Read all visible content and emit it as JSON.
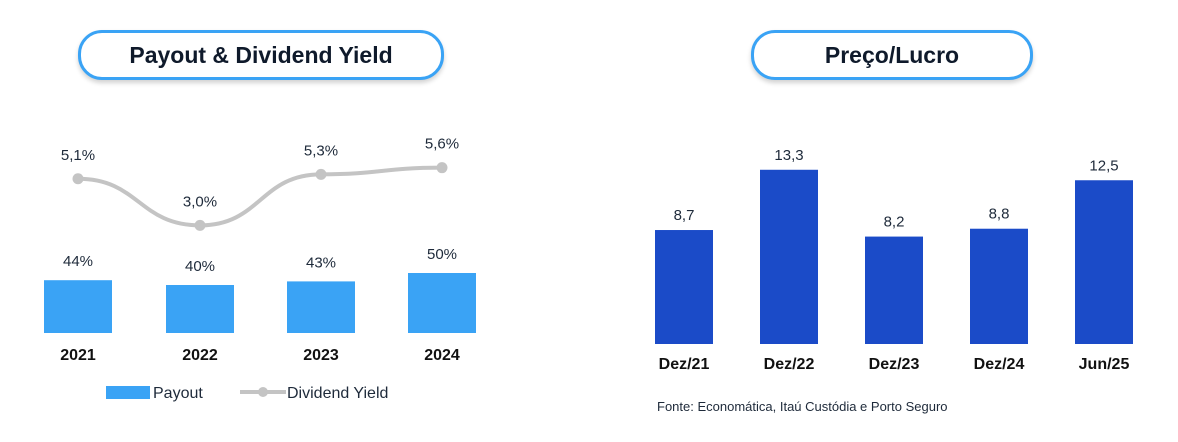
{
  "left_panel": {
    "title": "Payout & Dividend Yield"
  },
  "right_panel": {
    "title": "Preço/Lucro"
  },
  "source": "Fonte: Economática, Itaú Custódia e Porto Seguro",
  "colors": {
    "payout_bar": "#3aa3f5",
    "yield_line": "#c4c4c4",
    "pe_bar": "#1b4bc8",
    "pill_border": "#3aa3f5"
  },
  "chart_data": [
    {
      "type": "bar",
      "title": "Payout & Dividend Yield",
      "categories": [
        "2021",
        "2022",
        "2023",
        "2024"
      ],
      "series": [
        {
          "name": "Payout",
          "type": "bar",
          "values": [
            44,
            40,
            43,
            50
          ],
          "labels": [
            "44%",
            "40%",
            "43%",
            "50%"
          ]
        },
        {
          "name": "Dividend Yield",
          "type": "line",
          "values": [
            5.1,
            3.0,
            5.3,
            5.6
          ],
          "labels": [
            "5,1%",
            "3,0%",
            "5,3%",
            "5,6%"
          ]
        }
      ],
      "legend": {
        "placement": "bottom",
        "entries": [
          "Payout",
          "Dividend Yield"
        ]
      },
      "grid": false
    },
    {
      "type": "bar",
      "title": "Preço/Lucro",
      "categories": [
        "Dez/21",
        "Dez/22",
        "Dez/23",
        "Dez/24",
        "Jun/25"
      ],
      "values": [
        8.7,
        13.3,
        8.2,
        8.8,
        12.5
      ],
      "labels": [
        "8,7",
        "13,3",
        "8,2",
        "8,8",
        "12,5"
      ],
      "grid": false
    }
  ]
}
